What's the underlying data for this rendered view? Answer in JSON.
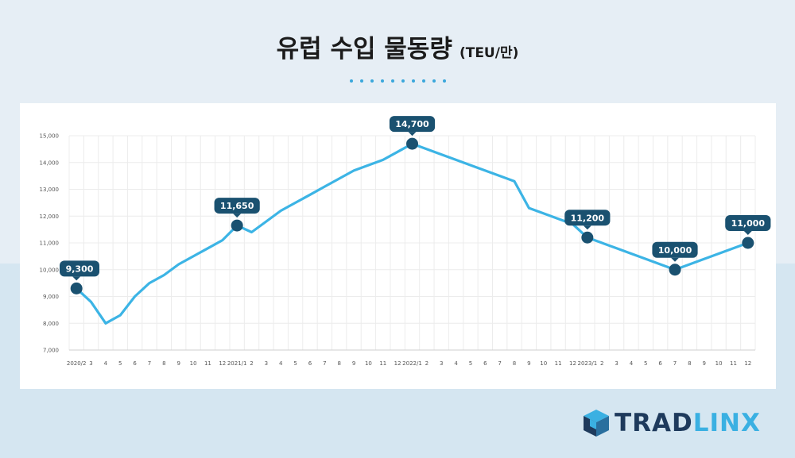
{
  "title": "유럽 수입 물동량",
  "unit": "(TEU/만)",
  "logo": {
    "part1": "TRAD",
    "part2": "LINX"
  },
  "colors": {
    "line": "#3cb4e5",
    "marker": "#1a5170",
    "label_bg": "#1a5170",
    "grid": "#ececec"
  },
  "chart_data": {
    "type": "line",
    "title": "유럽 수입 물동량",
    "ylabel": "(TEU/만)",
    "ylim": [
      7000,
      15000
    ],
    "yticks": [
      7000,
      8000,
      9000,
      10000,
      11000,
      12000,
      13000,
      14000,
      15000
    ],
    "ytick_labels": [
      "7,000",
      "8,000",
      "9,000",
      "10,000",
      "11,000",
      "12,000",
      "13,000",
      "14,000",
      "15,000"
    ],
    "x": [
      "2020/2",
      "3",
      "4",
      "5",
      "6",
      "7",
      "8",
      "9",
      "10",
      "11",
      "12",
      "2021/1",
      "2",
      "3",
      "4",
      "5",
      "6",
      "7",
      "8",
      "9",
      "10",
      "11",
      "12",
      "2022/1",
      "2",
      "3",
      "4",
      "5",
      "6",
      "7",
      "8",
      "9",
      "10",
      "11",
      "12",
      "2023/1",
      "2",
      "3",
      "4",
      "5",
      "6",
      "7",
      "8",
      "9",
      "10",
      "11",
      "12"
    ],
    "values": [
      9300,
      8800,
      8000,
      8300,
      9000,
      9500,
      9800,
      10200,
      10500,
      10800,
      11100,
      11650,
      11400,
      11800,
      12200,
      12500,
      12800,
      13100,
      13400,
      13700,
      13900,
      14100,
      14400,
      14700,
      14500,
      14300,
      14100,
      13900,
      13700,
      13500,
      13300,
      12300,
      12100,
      11900,
      11700,
      11200,
      11000,
      10800,
      10600,
      10400,
      10200,
      10000,
      10200,
      10400,
      10600,
      10800,
      11000
    ],
    "annotations": [
      {
        "index": 0,
        "label": "9,300"
      },
      {
        "index": 11,
        "label": "11,650"
      },
      {
        "index": 23,
        "label": "14,700"
      },
      {
        "index": 35,
        "label": "11,200"
      },
      {
        "index": 41,
        "label": "10,000"
      },
      {
        "index": 46,
        "label": "11,000"
      }
    ],
    "grid": true,
    "legend": "none"
  }
}
